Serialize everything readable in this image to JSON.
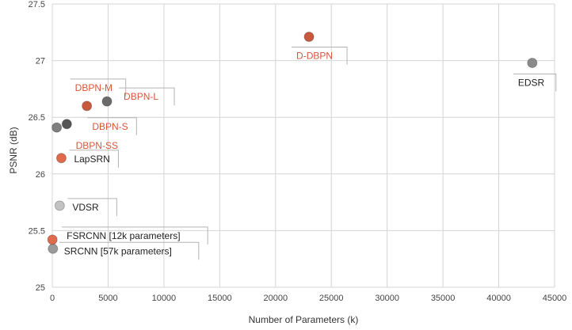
{
  "chart_data": {
    "type": "scatter",
    "xlabel": "Number of Parameters (k)",
    "ylabel": "PSNR (dB)",
    "xlim": [
      0,
      45000
    ],
    "ylim": [
      25,
      27.5
    ],
    "x_ticks": [
      "0",
      "5000",
      "10000",
      "15000",
      "20000",
      "25000",
      "30000",
      "35000",
      "40000",
      "45000"
    ],
    "y_ticks": [
      "25",
      "25.5",
      "26",
      "26.5",
      "27",
      "27.5"
    ],
    "grid": true,
    "points": [
      {
        "label": "SRCNN [57k parameters]",
        "x": 57,
        "y": 25.34,
        "color": "#9a9a9a",
        "label_color": "#222222"
      },
      {
        "label": "FSRCNN [12k parameters]",
        "x": 12,
        "y": 25.42,
        "color": "#e06a4c",
        "label_color": "#222222"
      },
      {
        "label": "VDSR",
        "x": 665,
        "y": 25.72,
        "color": "#c3c3c3",
        "label_color": "#222222"
      },
      {
        "label": "LapSRN",
        "x": 812,
        "y": 26.14,
        "color": "#e06a4c",
        "label_color": "#222222"
      },
      {
        "label": "DBPN-SS",
        "x": 400,
        "y": 26.41,
        "color": "#7f7f7f",
        "label_color": "#d9553a"
      },
      {
        "label": "DBPN-S",
        "x": 1300,
        "y": 26.44,
        "color": "#555555",
        "label_color": "#d9553a"
      },
      {
        "label": "DBPN-M",
        "x": 3100,
        "y": 26.6,
        "color": "#c9593d",
        "label_color": "#d9553a"
      },
      {
        "label": "DBPN-L",
        "x": 4900,
        "y": 26.64,
        "color": "#6b6b6b",
        "label_color": "#d9553a"
      },
      {
        "label": "D-DBPN",
        "x": 23000,
        "y": 27.21,
        "color": "#c9593d",
        "label_color": "#d9553a"
      },
      {
        "label": "EDSR",
        "x": 43000,
        "y": 26.98,
        "color": "#8a8a8a",
        "label_color": "#222222"
      }
    ]
  }
}
